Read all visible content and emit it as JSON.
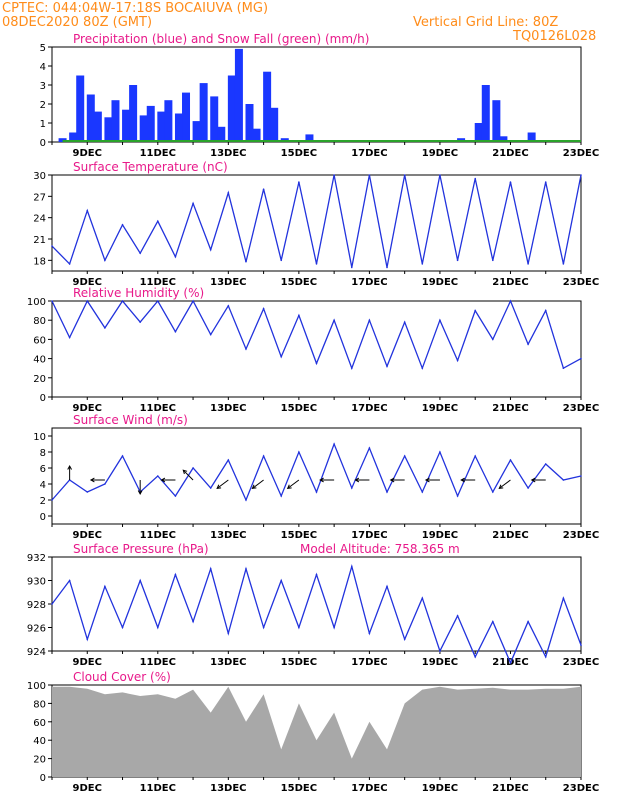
{
  "header": {
    "station_line": "CPTEC:   044:04W-17:18S   BOCAIUVA (MG)",
    "run_line": "08DEC2020 80Z (GMT)",
    "grid_note": "Vertical Grid Line: 80Z",
    "model_code": "TQ0126L028"
  },
  "x_tick_labels": [
    "9DEC",
    "11DEC",
    "13DEC",
    "15DEC",
    "17DEC",
    "19DEC",
    "21DEC",
    "23DEC"
  ],
  "chart_data": [
    {
      "id": "precip",
      "type": "bar",
      "title": "Precipitation (blue) and Snow Fall (green) (mm/h)",
      "ylim": [
        0,
        5
      ],
      "yticks": [
        0,
        1,
        2,
        3,
        4,
        5
      ],
      "colors": {
        "rain": "#1a37ff",
        "snow": "#2aa32a"
      },
      "series": [
        {
          "name": "rain",
          "x": [
            8.3,
            8.6,
            8.8,
            9.1,
            9.3,
            9.6,
            9.8,
            10.1,
            10.3,
            10.6,
            10.8,
            11.1,
            11.3,
            11.6,
            11.8,
            12.1,
            12.3,
            12.6,
            12.8,
            13.1,
            13.3,
            13.6,
            13.8,
            14.1,
            14.3,
            14.6,
            14.8,
            15.3,
            15.6,
            16.1,
            16.6,
            17.1,
            17.6,
            18.1,
            18.6,
            19.1,
            19.6,
            20.1,
            20.3,
            20.6,
            20.8,
            21.1,
            21.6,
            22.1,
            22.6
          ],
          "y": [
            0.2,
            0.5,
            3.5,
            2.5,
            1.6,
            1.3,
            2.2,
            1.7,
            3.0,
            1.4,
            1.9,
            1.6,
            2.2,
            1.5,
            2.6,
            1.1,
            3.1,
            2.4,
            0.8,
            3.5,
            4.9,
            2.0,
            0.7,
            3.7,
            1.8,
            0.2,
            0.0,
            0.4,
            0.0,
            0.0,
            0.0,
            0.0,
            0.0,
            0.0,
            0.0,
            0.0,
            0.2,
            1.0,
            3.0,
            2.2,
            0.3,
            0.1,
            0.5,
            0.0,
            0.0
          ]
        },
        {
          "name": "snow",
          "x": [
            8.3,
            23.0
          ],
          "y": [
            0.05,
            0.05
          ]
        }
      ]
    },
    {
      "id": "temp",
      "type": "line",
      "title": "Surface Temperature (nC)",
      "ylim": [
        16.5,
        30
      ],
      "yticks": [
        18,
        21,
        24,
        27,
        30
      ],
      "color": "#2233dd",
      "x": [
        8.0,
        8.5,
        9.0,
        9.5,
        10.0,
        10.5,
        11.0,
        11.5,
        12.0,
        12.5,
        13.0,
        13.5,
        14.0,
        14.5,
        15.0,
        15.5,
        16.0,
        16.5,
        17.0,
        17.5,
        18.0,
        18.5,
        19.0,
        19.5,
        20.0,
        20.5,
        21.0,
        21.5,
        22.0,
        22.5,
        23.0
      ],
      "y": [
        20.0,
        17.5,
        25.0,
        18.0,
        23.0,
        19.0,
        23.5,
        18.5,
        26.0,
        19.5,
        27.5,
        17.8,
        28.0,
        18.0,
        29.0,
        17.5,
        30.0,
        17.0,
        30.0,
        17.0,
        30.0,
        17.5,
        30.0,
        18.0,
        29.5,
        18.0,
        29.0,
        17.5,
        29.0,
        17.5,
        30.0
      ]
    },
    {
      "id": "rh",
      "type": "line",
      "title": "Relative Humidity (%)",
      "ylim": [
        0,
        100
      ],
      "yticks": [
        0,
        20,
        40,
        60,
        80,
        100
      ],
      "color": "#2233dd",
      "x": [
        8.0,
        8.5,
        9.0,
        9.5,
        10.0,
        10.5,
        11.0,
        11.5,
        12.0,
        12.5,
        13.0,
        13.5,
        14.0,
        14.5,
        15.0,
        15.5,
        16.0,
        16.5,
        17.0,
        17.5,
        18.0,
        18.5,
        19.0,
        19.5,
        20.0,
        20.5,
        21.0,
        21.5,
        22.0,
        22.5,
        23.0
      ],
      "y": [
        100,
        62,
        100,
        72,
        100,
        78,
        100,
        68,
        100,
        65,
        95,
        50,
        92,
        42,
        85,
        35,
        80,
        30,
        80,
        32,
        78,
        30,
        80,
        38,
        90,
        60,
        100,
        55,
        90,
        30,
        40
      ]
    },
    {
      "id": "wind",
      "type": "line",
      "title": "Surface Wind (m/s)",
      "ylim": [
        -1,
        11
      ],
      "yticks": [
        0,
        2,
        4,
        6,
        8,
        10
      ],
      "color": "#2233dd",
      "x": [
        8.0,
        8.5,
        9.0,
        9.5,
        10.0,
        10.5,
        11.0,
        11.5,
        12.0,
        12.5,
        13.0,
        13.5,
        14.0,
        14.5,
        15.0,
        15.5,
        16.0,
        16.5,
        17.0,
        17.5,
        18.0,
        18.5,
        19.0,
        19.5,
        20.0,
        20.5,
        21.0,
        21.5,
        22.0,
        22.5,
        23.0
      ],
      "y": [
        2.0,
        4.5,
        3.0,
        4.0,
        7.5,
        3.0,
        5.0,
        2.5,
        6.0,
        3.5,
        7.0,
        2.0,
        7.5,
        2.5,
        8.0,
        3.0,
        9.0,
        3.5,
        8.5,
        3.0,
        7.5,
        3.0,
        8.0,
        2.5,
        7.5,
        3.0,
        7.0,
        3.5,
        6.5,
        4.5,
        5.0
      ],
      "barbs": [
        {
          "x": 8.5,
          "dir": "up"
        },
        {
          "x": 9.5,
          "dir": "left"
        },
        {
          "x": 10.5,
          "dir": "down"
        },
        {
          "x": 11.5,
          "dir": "left"
        },
        {
          "x": 12.0,
          "dir": "upleft"
        },
        {
          "x": 13.0,
          "dir": "downleft"
        },
        {
          "x": 14.0,
          "dir": "downleft"
        },
        {
          "x": 15.0,
          "dir": "downleft"
        },
        {
          "x": 16.0,
          "dir": "left"
        },
        {
          "x": 17.0,
          "dir": "left"
        },
        {
          "x": 18.0,
          "dir": "left"
        },
        {
          "x": 19.0,
          "dir": "left"
        },
        {
          "x": 20.0,
          "dir": "left"
        },
        {
          "x": 21.0,
          "dir": "downleft"
        },
        {
          "x": 22.0,
          "dir": "left"
        }
      ]
    },
    {
      "id": "pressure",
      "type": "line",
      "title": "Surface Pressure (hPa)",
      "annotation": "Model Altitude: 758.365 m",
      "ylim": [
        924,
        932
      ],
      "yticks": [
        924,
        926,
        928,
        930,
        932
      ],
      "color": "#2233dd",
      "x": [
        8.0,
        8.5,
        9.0,
        9.5,
        10.0,
        10.5,
        11.0,
        11.5,
        12.0,
        12.5,
        13.0,
        13.5,
        14.0,
        14.5,
        15.0,
        15.5,
        16.0,
        16.5,
        17.0,
        17.5,
        18.0,
        18.5,
        19.0,
        19.5,
        20.0,
        20.5,
        21.0,
        21.5,
        22.0,
        22.5,
        23.0
      ],
      "y": [
        928.0,
        930.0,
        925.0,
        929.5,
        926.0,
        930.0,
        926.0,
        930.5,
        926.5,
        931.0,
        925.5,
        931.0,
        926.0,
        930.0,
        926.0,
        930.5,
        926.0,
        931.2,
        925.5,
        929.5,
        925.0,
        928.5,
        924.0,
        927.0,
        923.5,
        926.5,
        923.0,
        926.5,
        923.5,
        928.5,
        924.5
      ]
    },
    {
      "id": "cloud",
      "type": "area",
      "title": "Cloud Cover (%)",
      "ylim": [
        0,
        100
      ],
      "yticks": [
        0,
        20,
        40,
        60,
        80,
        100
      ],
      "color": "#a8a8a8",
      "x": [
        8.0,
        8.5,
        9.0,
        9.5,
        10.0,
        10.5,
        11.0,
        11.5,
        12.0,
        12.5,
        13.0,
        13.5,
        14.0,
        14.5,
        15.0,
        15.5,
        16.0,
        16.5,
        17.0,
        17.5,
        18.0,
        18.5,
        19.0,
        19.5,
        20.0,
        20.5,
        21.0,
        21.5,
        22.0,
        22.5,
        23.0
      ],
      "y": [
        98,
        98,
        96,
        90,
        92,
        88,
        90,
        85,
        95,
        70,
        98,
        60,
        90,
        30,
        80,
        40,
        70,
        20,
        60,
        30,
        80,
        95,
        98,
        95,
        96,
        97,
        95,
        95,
        96,
        96,
        98
      ]
    }
  ]
}
